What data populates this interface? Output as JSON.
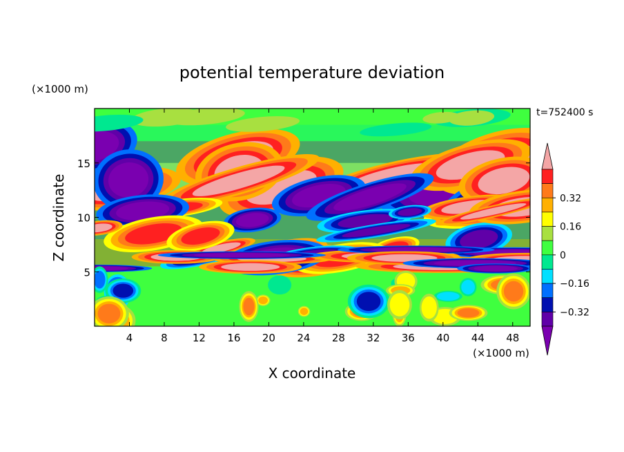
{
  "chart_data": {
    "type": "heatmap",
    "title": "potential temperature deviation",
    "xlabel": "X coordinate",
    "ylabel": "Z coordinate",
    "x_unit": "(×1000 m)",
    "y_unit": "(×1000 m)",
    "time_label": "t=752400 s",
    "xlim": [
      0,
      50
    ],
    "ylim": [
      0,
      20
    ],
    "x_ticks": [
      4,
      8,
      12,
      16,
      20,
      24,
      28,
      32,
      36,
      40,
      44,
      48
    ],
    "y_ticks": [
      5,
      10,
      15
    ],
    "colorbar": {
      "levels": [
        -0.48,
        -0.4,
        -0.32,
        -0.24,
        -0.16,
        -0.08,
        0,
        0.08,
        0.16,
        0.24,
        0.32,
        0.4,
        0.48
      ],
      "labeled_levels": [
        0.32,
        0.16,
        0,
        -0.16,
        -0.32
      ],
      "labels": [
        "0.32",
        "0.16",
        "0",
        "−0.16",
        "−0.32"
      ],
      "colors_top_to_bottom": [
        "#f4a6a6",
        "#ff2020",
        "#ff7a1a",
        "#ffb000",
        "#ffff00",
        "#a8e040",
        "#40ff40",
        "#00e890",
        "#00e0ff",
        "#0070ff",
        "#0010b0",
        "#6000a8",
        "#7a00b0"
      ]
    },
    "bands": [
      {
        "z_range": [
          18.5,
          20
        ],
        "dominant": "#40ff40"
      },
      {
        "z_range": [
          17,
          18.5
        ],
        "dominant": "#00e890"
      },
      {
        "z_range": [
          15,
          17
        ],
        "dominant": "#6000a8"
      },
      {
        "z_range": [
          11,
          15
        ],
        "dominant": "#f4a6a6"
      },
      {
        "z_range": [
          8,
          11
        ],
        "dominant": "#6000a8"
      },
      {
        "z_range": [
          5.5,
          8
        ],
        "dominant": "#ff2020"
      },
      {
        "z_range": [
          0,
          5.5
        ],
        "dominant": "#40ff40"
      }
    ]
  }
}
